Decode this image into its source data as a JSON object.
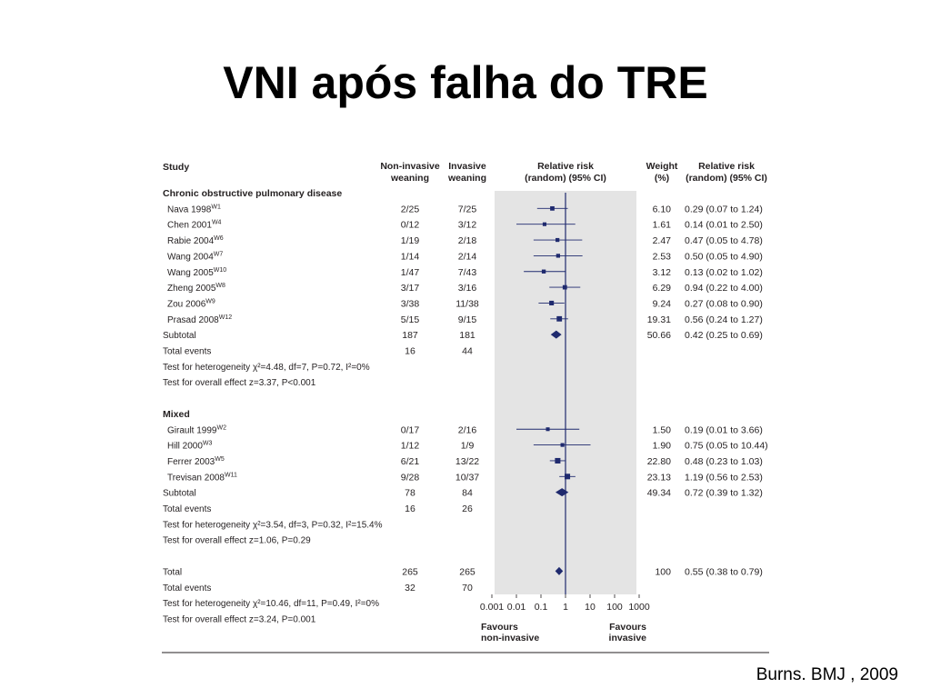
{
  "title": "VNI após falha do TRE",
  "citation": "Burns. BMJ , 2009",
  "headers": {
    "study": "Study",
    "ni1": "Non-invasive",
    "ni2": "weaning",
    "inv1": "Invasive",
    "inv2": "weaning",
    "rr1": "Relative risk",
    "rr2": "(random) (95% CI)",
    "w1": "Weight",
    "w2": "(%)",
    "rrc1": "Relative risk",
    "rrc2": "(random) (95% CI)"
  },
  "chart_data": {
    "type": "forest",
    "x_scale": "log",
    "xlim": [
      0.001,
      1000
    ],
    "ticks": [
      "0.001",
      "0.01",
      "0.1",
      "1",
      "10",
      "100",
      "1000"
    ],
    "favours_left": [
      "Favours",
      "non-invasive"
    ],
    "favours_right": [
      "Favours",
      "invasive"
    ],
    "rows": [
      {
        "kind": "section",
        "label": "Chronic obstructive pulmonary disease"
      },
      {
        "kind": "study",
        "name": "Nava 1998",
        "sup": "W1",
        "ni": "2/25",
        "inv": "7/25",
        "weight": "6.10",
        "ci_text": "0.29 (0.07 to 1.24)",
        "rr": 0.29,
        "lo": 0.07,
        "hi": 1.24
      },
      {
        "kind": "study",
        "name": "Chen 2001",
        "sup": "W4",
        "ni": "0/12",
        "inv": "3/12",
        "weight": "1.61",
        "ci_text": "0.14 (0.01 to 2.50)",
        "rr": 0.14,
        "lo": 0.01,
        "hi": 2.5
      },
      {
        "kind": "study",
        "name": "Rabie 2004",
        "sup": "W6",
        "ni": "1/19",
        "inv": "2/18",
        "weight": "2.47",
        "ci_text": "0.47 (0.05 to 4.78)",
        "rr": 0.47,
        "lo": 0.05,
        "hi": 4.78
      },
      {
        "kind": "study",
        "name": "Wang 2004",
        "sup": "W7",
        "ni": "1/14",
        "inv": "2/14",
        "weight": "2.53",
        "ci_text": "0.50 (0.05 to 4.90)",
        "rr": 0.5,
        "lo": 0.05,
        "hi": 4.9
      },
      {
        "kind": "study",
        "name": "Wang 2005",
        "sup": "W10",
        "ni": "1/47",
        "inv": "7/43",
        "weight": "3.12",
        "ci_text": "0.13 (0.02 to 1.02)",
        "rr": 0.13,
        "lo": 0.02,
        "hi": 1.02
      },
      {
        "kind": "study",
        "name": "Zheng 2005",
        "sup": "W8",
        "ni": "3/17",
        "inv": "3/16",
        "weight": "6.29",
        "ci_text": "0.94 (0.22 to 4.00)",
        "rr": 0.94,
        "lo": 0.22,
        "hi": 4.0
      },
      {
        "kind": "study",
        "name": "Zou 2006",
        "sup": "W9",
        "ni": "3/38",
        "inv": "11/38",
        "weight": "9.24",
        "ci_text": "0.27 (0.08 to 0.90)",
        "rr": 0.27,
        "lo": 0.08,
        "hi": 0.9
      },
      {
        "kind": "study",
        "name": "Prasad 2008",
        "sup": "W12",
        "ni": "5/15",
        "inv": "9/15",
        "weight": "19.31",
        "ci_text": "0.56 (0.24 to 1.27)",
        "rr": 0.56,
        "lo": 0.24,
        "hi": 1.27
      },
      {
        "kind": "subtotal",
        "label": "Subtotal",
        "ni": "187",
        "inv": "181",
        "weight": "50.66",
        "ci_text": "0.42 (0.25 to 0.69)",
        "rr": 0.42,
        "lo": 0.25,
        "hi": 0.69
      },
      {
        "kind": "events",
        "label": "Total events",
        "ni": "16",
        "inv": "44"
      },
      {
        "kind": "test",
        "label": "Test for heterogeneity χ²=4.48, df=7, P=0.72, I²=0%"
      },
      {
        "kind": "test",
        "label": "Test for overall effect z=3.37, P<0.001"
      },
      {
        "kind": "blank"
      },
      {
        "kind": "section",
        "label": "Mixed"
      },
      {
        "kind": "study",
        "name": "Girault 1999",
        "sup": "W2",
        "ni": "0/17",
        "inv": "2/16",
        "weight": "1.50",
        "ci_text": "0.19 (0.01 to 3.66)",
        "rr": 0.19,
        "lo": 0.01,
        "hi": 3.66
      },
      {
        "kind": "study",
        "name": "Hill 2000",
        "sup": "W3",
        "ni": "1/12",
        "inv": "1/9",
        "weight": "1.90",
        "ci_text": "0.75 (0.05 to 10.44)",
        "rr": 0.75,
        "lo": 0.05,
        "hi": 10.44
      },
      {
        "kind": "study",
        "name": "Ferrer 2003",
        "sup": "W5",
        "ni": "6/21",
        "inv": "13/22",
        "weight": "22.80",
        "ci_text": "0.48 (0.23 to 1.03)",
        "rr": 0.48,
        "lo": 0.23,
        "hi": 1.03
      },
      {
        "kind": "study",
        "name": "Trevisan 2008",
        "sup": "W11",
        "ni": "9/28",
        "inv": "10/37",
        "weight": "23.13",
        "ci_text": "1.19 (0.56 to 2.53)",
        "rr": 1.19,
        "lo": 0.56,
        "hi": 2.53
      },
      {
        "kind": "subtotal",
        "label": "Subtotal",
        "ni": "78",
        "inv": "84",
        "weight": "49.34",
        "ci_text": "0.72 (0.39 to 1.32)",
        "rr": 0.72,
        "lo": 0.39,
        "hi": 1.32
      },
      {
        "kind": "events",
        "label": "Total events",
        "ni": "16",
        "inv": "26"
      },
      {
        "kind": "test",
        "label": "Test for heterogeneity χ²=3.54, df=3, P=0.32, I²=15.4%"
      },
      {
        "kind": "test",
        "label": "Test for overall effect z=1.06, P=0.29"
      },
      {
        "kind": "blank"
      },
      {
        "kind": "total",
        "label": "Total",
        "ni": "265",
        "inv": "265",
        "weight": "100",
        "ci_text": "0.55 (0.38 to 0.79)",
        "rr": 0.55,
        "lo": 0.38,
        "hi": 0.79
      },
      {
        "kind": "events",
        "label": "Total events",
        "ni": "32",
        "inv": "70"
      },
      {
        "kind": "test",
        "label": "Test for heterogeneity χ²=10.46, df=11, P=0.49, I²=0%"
      },
      {
        "kind": "test",
        "label": "Test for overall effect z=3.24, P=0.001"
      }
    ]
  },
  "colors": {
    "marker": "#1f2a6e",
    "plot_bg": "#e4e4e4",
    "text": "#231f20"
  }
}
